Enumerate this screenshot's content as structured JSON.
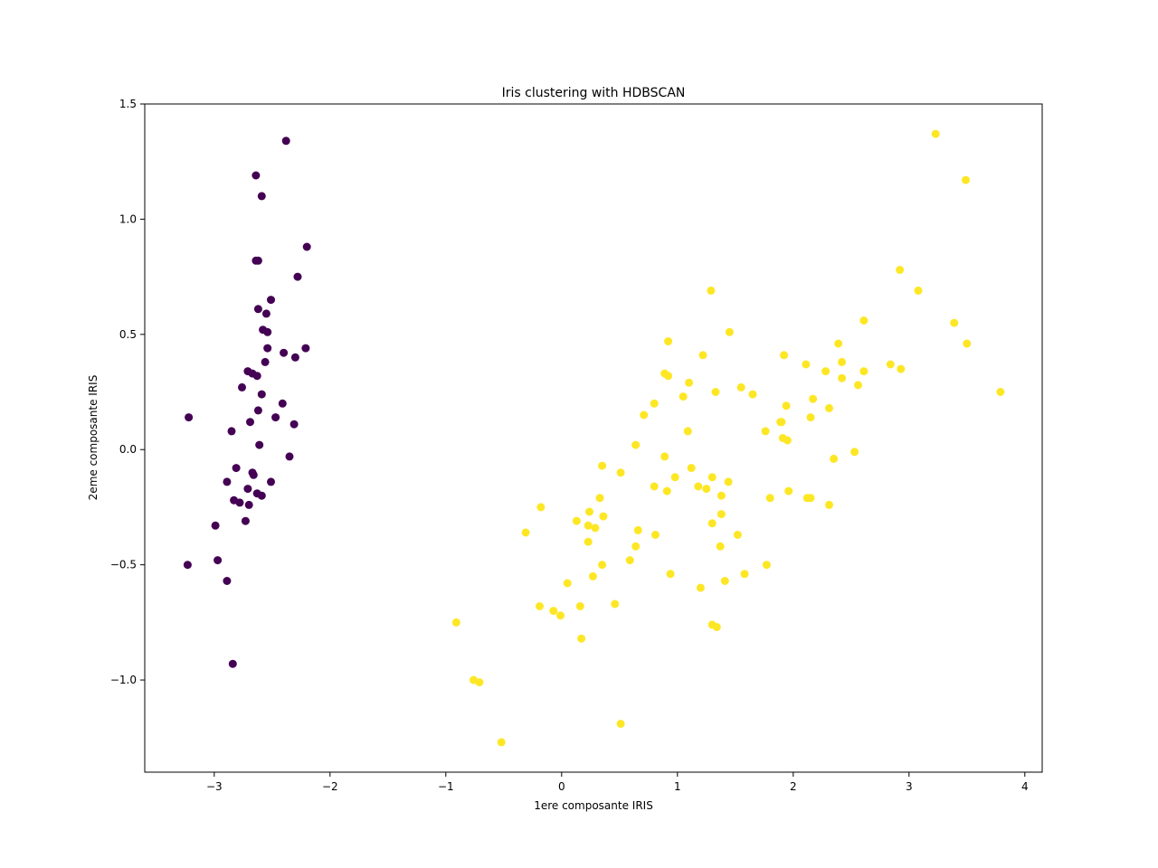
{
  "chart_data": {
    "type": "scatter",
    "title": "Iris clustering with HDBSCAN",
    "xlabel": "1ere composante IRIS",
    "ylabel": "2eme composante IRIS",
    "xlim": [
      -3.6,
      4.15
    ],
    "ylim": [
      -1.4,
      1.5
    ],
    "xticks": [
      -3,
      -2,
      -1,
      0,
      1,
      2,
      3,
      4
    ],
    "xtick_labels": [
      "−3",
      "−2",
      "−1",
      "0",
      "1",
      "2",
      "3",
      "4"
    ],
    "yticks": [
      -1.0,
      -0.5,
      0.0,
      0.5,
      1.0,
      1.5
    ],
    "ytick_labels": [
      "−1.0",
      "−0.5",
      "0.0",
      "0.5",
      "1.0",
      "1.5"
    ],
    "grid": false,
    "legend": false,
    "series": [
      {
        "color": "#440154",
        "points": [
          [
            -2.38,
            1.34
          ],
          [
            -2.64,
            1.19
          ],
          [
            -2.59,
            1.1
          ],
          [
            -2.2,
            0.88
          ],
          [
            -2.64,
            0.82
          ],
          [
            -2.62,
            0.82
          ],
          [
            -2.28,
            0.75
          ],
          [
            -2.51,
            0.65
          ],
          [
            -2.62,
            0.61
          ],
          [
            -2.55,
            0.59
          ],
          [
            -2.58,
            0.52
          ],
          [
            -2.54,
            0.51
          ],
          [
            -2.21,
            0.44
          ],
          [
            -2.54,
            0.44
          ],
          [
            -2.4,
            0.42
          ],
          [
            -2.3,
            0.4
          ],
          [
            -2.56,
            0.38
          ],
          [
            -2.71,
            0.34
          ],
          [
            -2.67,
            0.33
          ],
          [
            -2.63,
            0.32
          ],
          [
            -2.76,
            0.27
          ],
          [
            -2.59,
            0.24
          ],
          [
            -2.41,
            0.2
          ],
          [
            -2.62,
            0.17
          ],
          [
            -3.22,
            0.14
          ],
          [
            -2.47,
            0.14
          ],
          [
            -2.69,
            0.12
          ],
          [
            -2.31,
            0.11
          ],
          [
            -2.85,
            0.08
          ],
          [
            -2.61,
            0.02
          ],
          [
            -2.35,
            -0.03
          ],
          [
            -2.81,
            -0.08
          ],
          [
            -2.67,
            -0.1
          ],
          [
            -2.66,
            -0.11
          ],
          [
            -2.89,
            -0.14
          ],
          [
            -2.51,
            -0.14
          ],
          [
            -2.71,
            -0.17
          ],
          [
            -2.63,
            -0.19
          ],
          [
            -2.59,
            -0.2
          ],
          [
            -2.83,
            -0.22
          ],
          [
            -2.78,
            -0.23
          ],
          [
            -2.7,
            -0.24
          ],
          [
            -2.73,
            -0.31
          ],
          [
            -2.99,
            -0.33
          ],
          [
            -2.97,
            -0.48
          ],
          [
            -3.23,
            -0.5
          ],
          [
            -2.89,
            -0.57
          ],
          [
            -2.84,
            -0.93
          ]
        ]
      },
      {
        "color": "#fde725",
        "points": [
          [
            3.23,
            1.37
          ],
          [
            3.49,
            1.17
          ],
          [
            2.92,
            0.78
          ],
          [
            3.08,
            0.69
          ],
          [
            1.29,
            0.69
          ],
          [
            2.61,
            0.56
          ],
          [
            3.39,
            0.55
          ],
          [
            1.45,
            0.51
          ],
          [
            0.92,
            0.47
          ],
          [
            2.39,
            0.46
          ],
          [
            3.5,
            0.46
          ],
          [
            1.22,
            0.41
          ],
          [
            1.92,
            0.41
          ],
          [
            2.42,
            0.38
          ],
          [
            2.11,
            0.37
          ],
          [
            2.84,
            0.37
          ],
          [
            2.93,
            0.35
          ],
          [
            2.61,
            0.34
          ],
          [
            2.28,
            0.34
          ],
          [
            0.89,
            0.33
          ],
          [
            0.92,
            0.32
          ],
          [
            2.42,
            0.31
          ],
          [
            1.1,
            0.29
          ],
          [
            2.56,
            0.28
          ],
          [
            1.55,
            0.27
          ],
          [
            3.79,
            0.25
          ],
          [
            1.33,
            0.25
          ],
          [
            1.65,
            0.24
          ],
          [
            1.05,
            0.23
          ],
          [
            2.17,
            0.22
          ],
          [
            0.8,
            0.2
          ],
          [
            1.94,
            0.19
          ],
          [
            2.31,
            0.18
          ],
          [
            0.71,
            0.15
          ],
          [
            2.15,
            0.14
          ],
          [
            1.89,
            0.12
          ],
          [
            1.9,
            0.12
          ],
          [
            1.09,
            0.08
          ],
          [
            1.76,
            0.08
          ],
          [
            1.91,
            0.05
          ],
          [
            1.95,
            0.04
          ],
          [
            0.64,
            0.02
          ],
          [
            2.53,
            -0.01
          ],
          [
            0.89,
            -0.03
          ],
          [
            2.35,
            -0.04
          ],
          [
            0.35,
            -0.07
          ],
          [
            1.12,
            -0.08
          ],
          [
            0.51,
            -0.1
          ],
          [
            1.3,
            -0.12
          ],
          [
            0.98,
            -0.12
          ],
          [
            1.44,
            -0.14
          ],
          [
            0.8,
            -0.16
          ],
          [
            1.18,
            -0.16
          ],
          [
            1.25,
            -0.17
          ],
          [
            0.91,
            -0.18
          ],
          [
            1.96,
            -0.18
          ],
          [
            1.38,
            -0.2
          ],
          [
            0.33,
            -0.21
          ],
          [
            2.12,
            -0.21
          ],
          [
            2.15,
            -0.21
          ],
          [
            1.8,
            -0.21
          ],
          [
            2.31,
            -0.24
          ],
          [
            -0.18,
            -0.25
          ],
          [
            0.24,
            -0.27
          ],
          [
            1.38,
            -0.28
          ],
          [
            0.36,
            -0.29
          ],
          [
            0.13,
            -0.31
          ],
          [
            1.3,
            -0.32
          ],
          [
            0.23,
            -0.33
          ],
          [
            0.29,
            -0.34
          ],
          [
            0.66,
            -0.35
          ],
          [
            -0.31,
            -0.36
          ],
          [
            0.81,
            -0.37
          ],
          [
            1.52,
            -0.37
          ],
          [
            0.23,
            -0.4
          ],
          [
            0.64,
            -0.42
          ],
          [
            1.37,
            -0.42
          ],
          [
            0.59,
            -0.48
          ],
          [
            0.35,
            -0.5
          ],
          [
            1.77,
            -0.5
          ],
          [
            0.94,
            -0.54
          ],
          [
            0.27,
            -0.55
          ],
          [
            1.58,
            -0.54
          ],
          [
            1.41,
            -0.57
          ],
          [
            0.05,
            -0.58
          ],
          [
            1.2,
            -0.6
          ],
          [
            0.46,
            -0.67
          ],
          [
            -0.19,
            -0.68
          ],
          [
            0.16,
            -0.68
          ],
          [
            -0.07,
            -0.7
          ],
          [
            -0.01,
            -0.72
          ],
          [
            -0.91,
            -0.75
          ],
          [
            1.3,
            -0.76
          ],
          [
            1.34,
            -0.77
          ],
          [
            0.17,
            -0.82
          ],
          [
            -0.76,
            -1.0
          ],
          [
            -0.71,
            -1.01
          ],
          [
            0.51,
            -1.19
          ],
          [
            -0.52,
            -1.27
          ]
        ]
      }
    ]
  }
}
